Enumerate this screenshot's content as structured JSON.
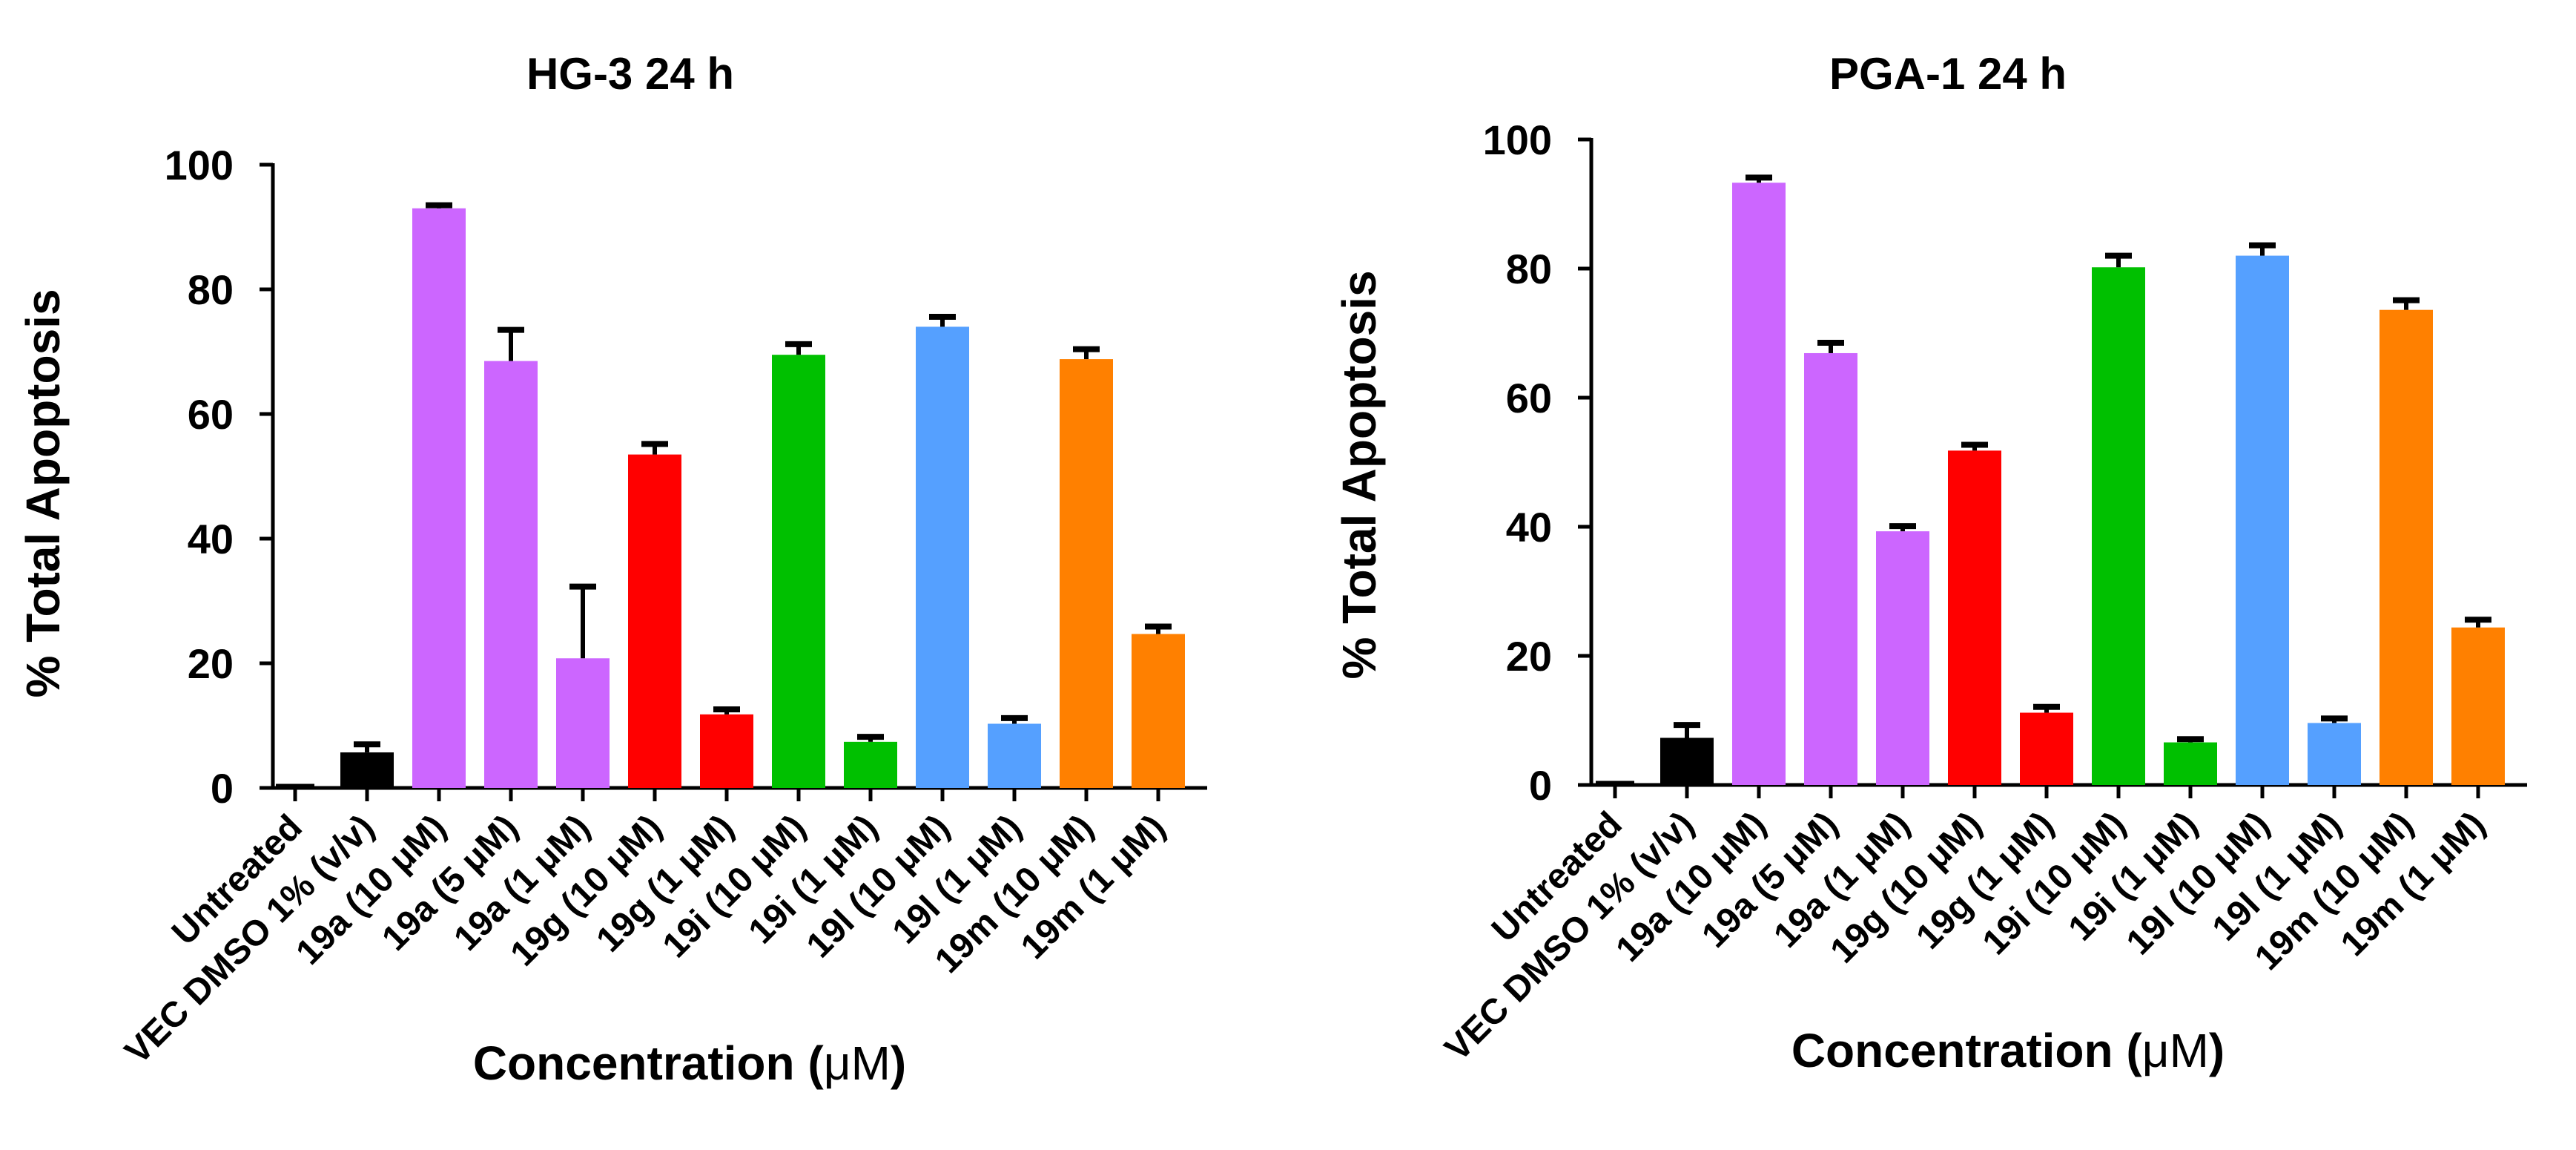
{
  "chart_data": [
    {
      "type": "bar",
      "title": "HG-3 24 h",
      "xlabel": "Concentration",
      "xlabel_unit": "μM",
      "ylabel": "% Total Apoptosis",
      "ylim": [
        0,
        100
      ],
      "yticks": [
        "0",
        "20",
        "40",
        "60",
        "80",
        "100"
      ],
      "grid": false,
      "categories": [
        "Untreated",
        "VEC DMSO 1% (v/v)",
        "19a (10 μM)",
        "19a (5 μM)",
        "19a (1 μM)",
        "19g (10 μM)",
        "19g (1 μM)",
        "19i (10 μM)",
        "19i (1 μM)",
        "19l (10 μM)",
        "19l (1 μM)",
        "19m (10 μM)",
        "19m (1 μM)"
      ],
      "values": [
        0,
        5.7,
        93,
        68.5,
        20.8,
        53.5,
        11.8,
        69.5,
        7.4,
        74,
        10.3,
        68.8,
        24.7
      ],
      "errors": [
        0,
        1.3,
        0.5,
        5,
        11.5,
        1.7,
        0.8,
        1.7,
        0.8,
        1.6,
        0.9,
        1.6,
        1.2
      ],
      "colors": [
        "#000000",
        "#000000",
        "#cc66ff",
        "#cc66ff",
        "#cc66ff",
        "#ff0000",
        "#ff0000",
        "#00c000",
        "#00c000",
        "#55a0ff",
        "#55a0ff",
        "#ff8000",
        "#ff8000"
      ]
    },
    {
      "type": "bar",
      "title": "PGA-1 24 h",
      "xlabel": "Concentration",
      "xlabel_unit": "μM",
      "ylabel": "% Total Apoptosis",
      "ylim": [
        0,
        100
      ],
      "yticks": [
        "0",
        "20",
        "40",
        "60",
        "80",
        "100"
      ],
      "grid": false,
      "categories": [
        "Untreated",
        "VEC DMSO 1% (v/v)",
        "19a (10 μM)",
        "19a (5 μM)",
        "19a (1 μM)",
        "19g (10 μM)",
        "19g (1 μM)",
        "19i (10 μM)",
        "19i (1 μM)",
        "19l (10 μM)",
        "19l (1 μM)",
        "19m (10 μM)",
        "19m (1 μM)"
      ],
      "values": [
        0,
        7.3,
        93.3,
        66.9,
        39.3,
        51.8,
        11.2,
        80.2,
        6.6,
        82,
        9.6,
        73.6,
        24.4
      ],
      "errors": [
        0,
        2,
        0.8,
        1.6,
        0.8,
        0.9,
        0.9,
        1.8,
        0.5,
        1.6,
        0.7,
        1.5,
        1.2
      ],
      "colors": [
        "#000000",
        "#000000",
        "#cc66ff",
        "#cc66ff",
        "#cc66ff",
        "#ff0000",
        "#ff0000",
        "#00c000",
        "#00c000",
        "#55a0ff",
        "#55a0ff",
        "#ff8000",
        "#ff8000"
      ]
    }
  ]
}
